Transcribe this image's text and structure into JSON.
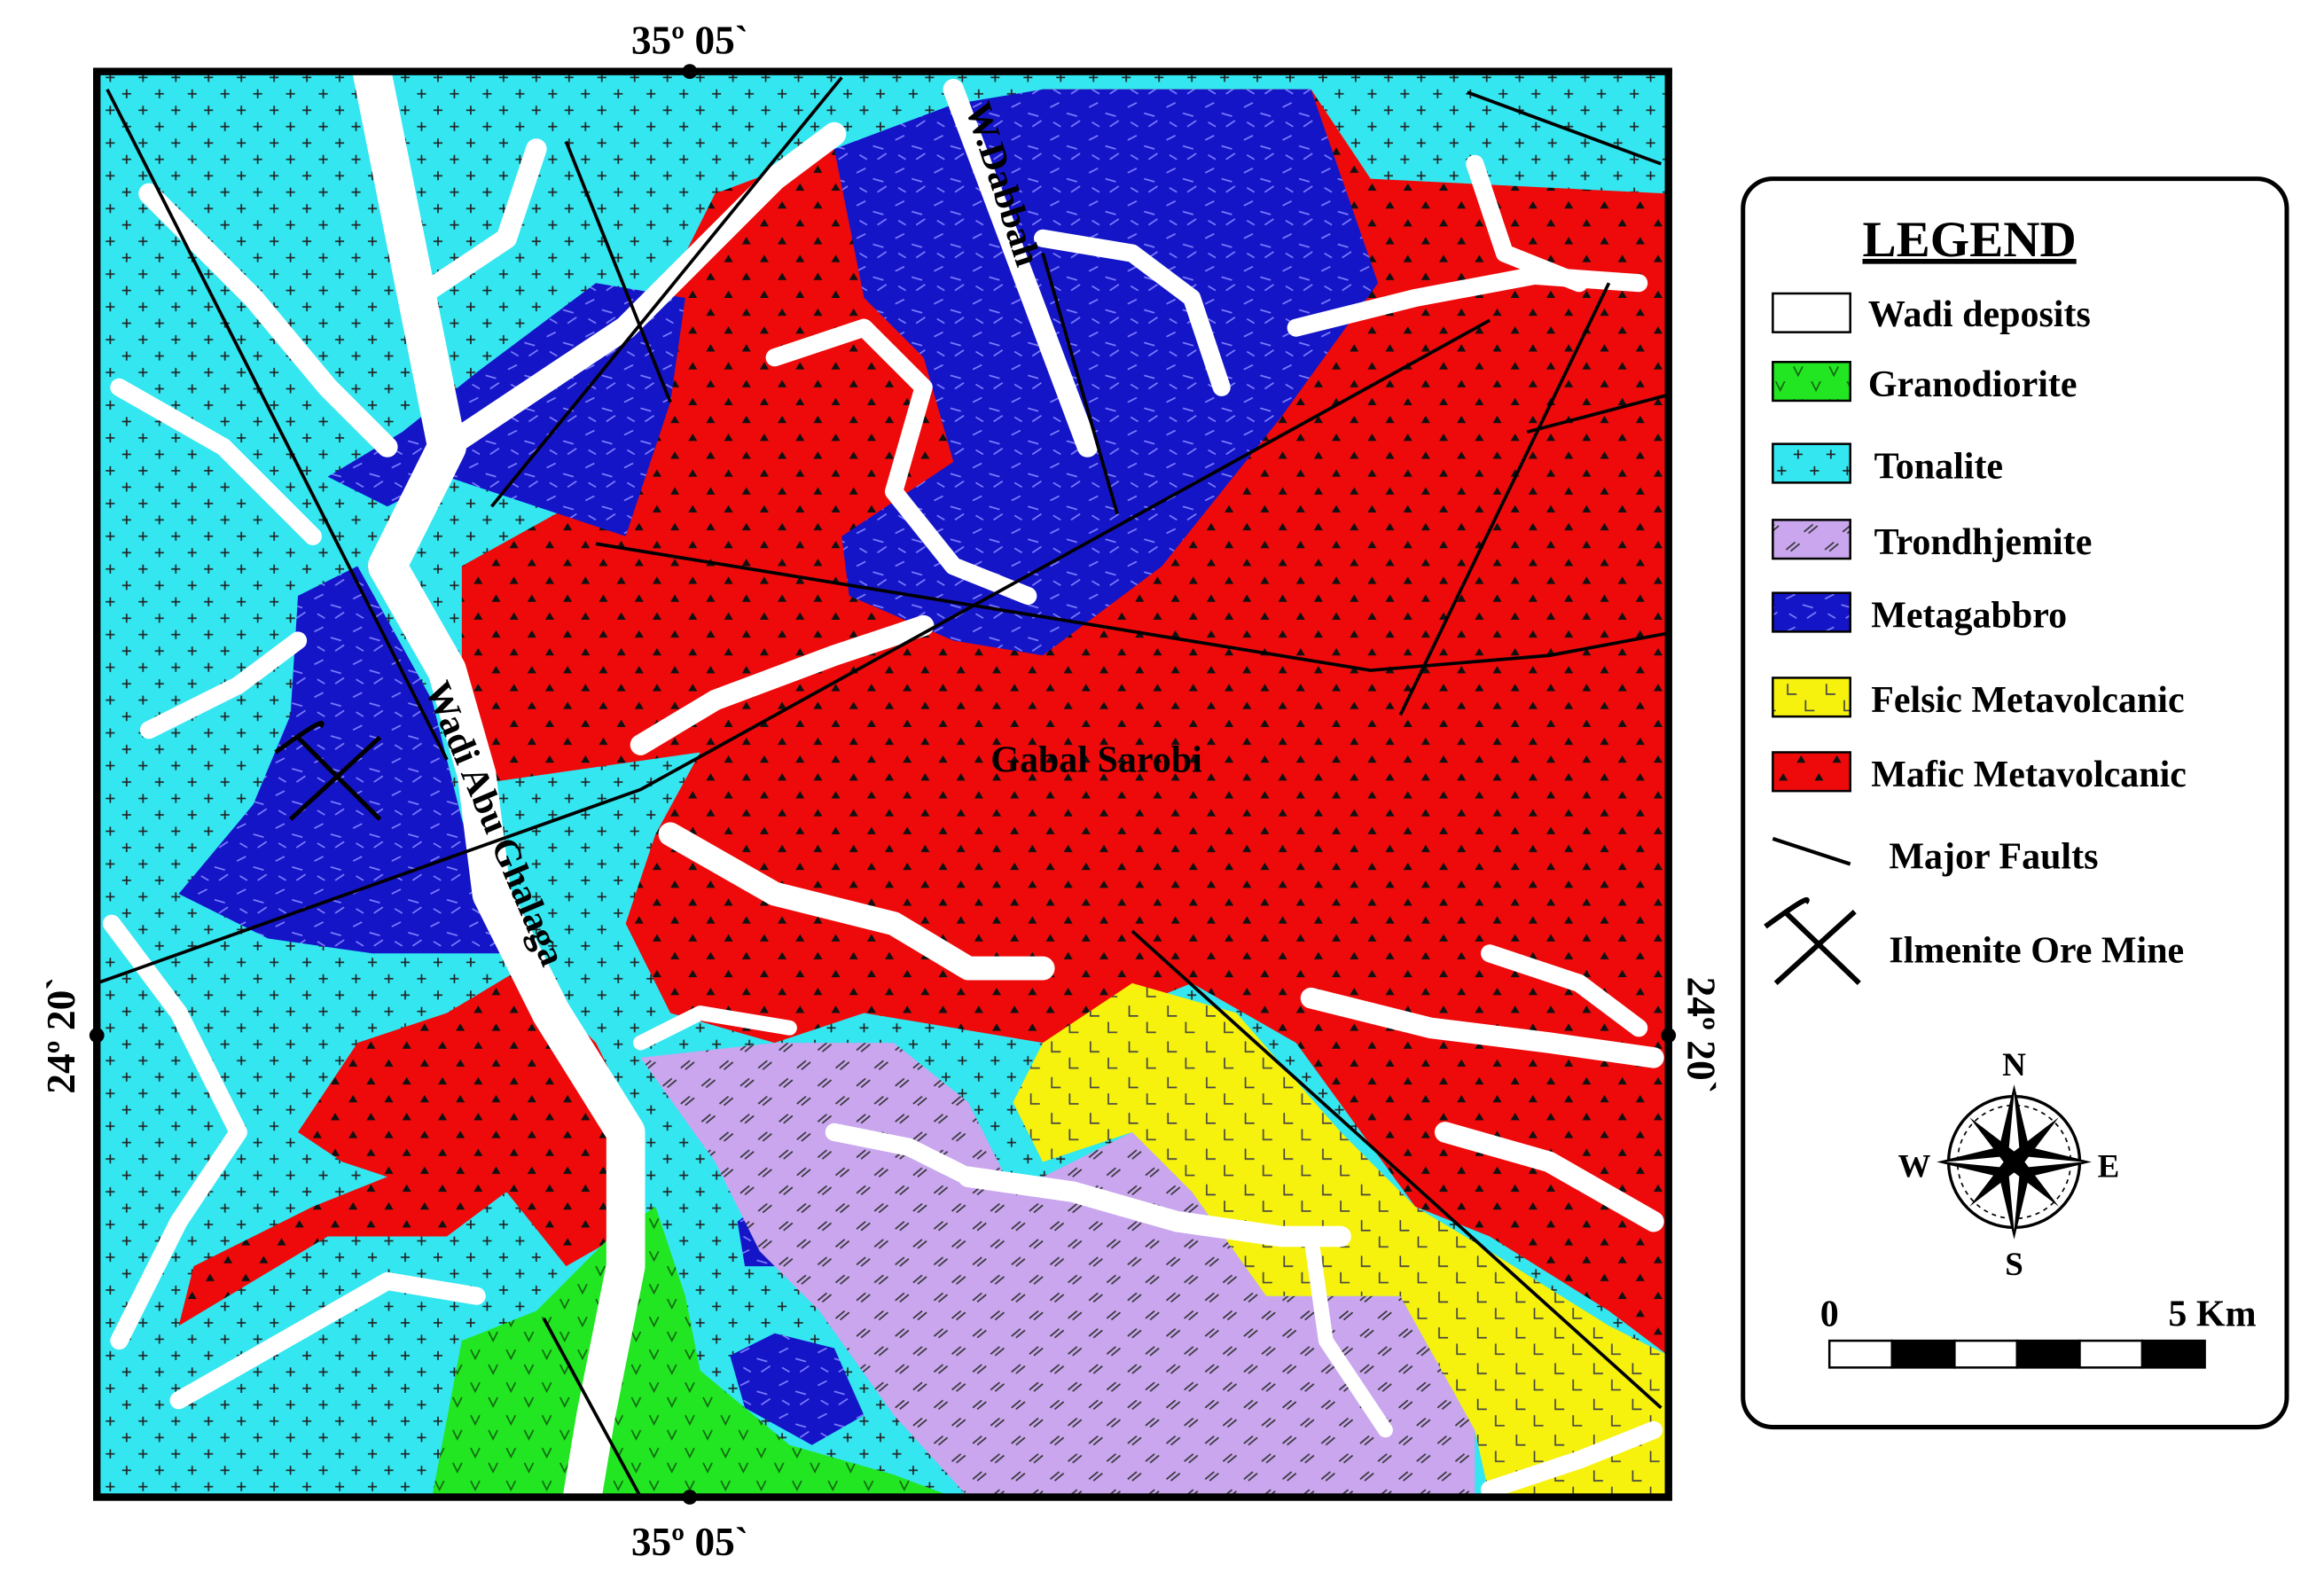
{
  "map": {
    "coordinates": {
      "top": "35º 05`",
      "bottom": "35º 05`",
      "left": "24º 20`",
      "right": "24º 20`"
    },
    "labels": [
      "W.Dabbah",
      "Wadi Abu Ghalaga",
      "Gabal Sarobi"
    ],
    "legend": {
      "title": "LEGEND",
      "items": [
        "Wadi deposits",
        "Granodiorite",
        "Tonalite",
        "Trondhjemite",
        "Metagabbro",
        "Felsic Metavolcanic",
        "Mafic Metavolcanic",
        "Major Faults",
        "Ilmenite Ore Mine"
      ]
    },
    "compass": {
      "n": "N",
      "s": "S",
      "e": "E",
      "w": "W"
    },
    "scale": {
      "start": "0",
      "end": "5 Km"
    }
  }
}
